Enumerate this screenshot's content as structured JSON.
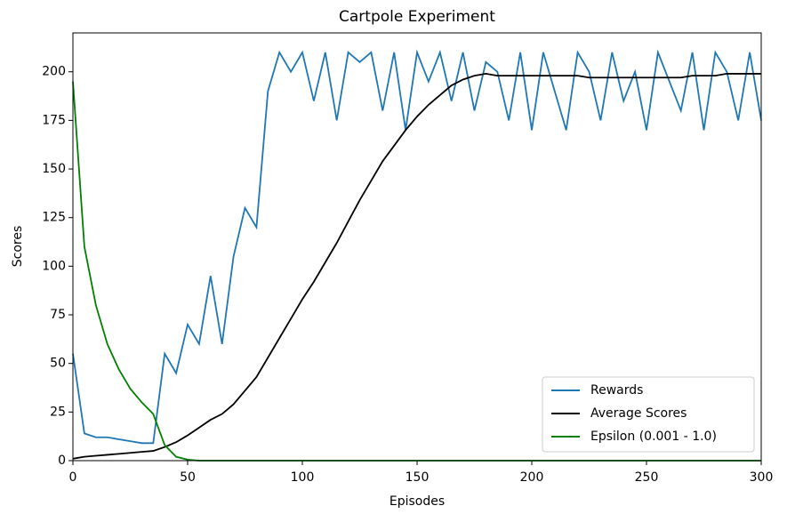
{
  "chart_data": {
    "type": "line",
    "title": "Cartpole Experiment",
    "x_label": "Episodes",
    "y_label": "Scores",
    "x": [
      0,
      5,
      10,
      15,
      20,
      25,
      30,
      35,
      40,
      45,
      50,
      55,
      60,
      65,
      70,
      75,
      80,
      85,
      90,
      95,
      100,
      105,
      110,
      115,
      120,
      125,
      130,
      135,
      140,
      145,
      150,
      155,
      160,
      165,
      170,
      175,
      180,
      185,
      190,
      195,
      200,
      205,
      210,
      215,
      220,
      225,
      230,
      235,
      240,
      245,
      250,
      255,
      260,
      265,
      270,
      275,
      280,
      285,
      290,
      295,
      300
    ],
    "series": [
      {
        "name": "Rewards",
        "color": "#1f77b4",
        "values": [
          55,
          14,
          12,
          12,
          11,
          10,
          9,
          9,
          55,
          45,
          70,
          60,
          95,
          60,
          105,
          130,
          120,
          190,
          210,
          200,
          210,
          185,
          210,
          175,
          210,
          205,
          210,
          180,
          210,
          170,
          210,
          195,
          210,
          185,
          210,
          180,
          205,
          200,
          175,
          210,
          170,
          210,
          190,
          170,
          210,
          200,
          175,
          210,
          185,
          200,
          170,
          210,
          195,
          180,
          210,
          170,
          210,
          200,
          175,
          210,
          175
        ]
      },
      {
        "name": "Average Scores",
        "color": "#000000",
        "values": [
          1,
          2,
          2.5,
          3,
          3.5,
          4,
          4.5,
          5,
          7,
          9.5,
          13,
          17,
          21,
          24,
          29,
          36,
          43,
          53,
          63,
          73,
          83,
          92,
          102,
          112,
          123,
          134,
          144,
          154,
          162,
          170,
          177,
          183,
          188,
          193,
          196,
          198,
          199,
          198,
          198,
          198,
          198,
          198,
          198,
          198,
          198,
          197,
          197,
          197,
          197,
          197,
          197,
          197,
          197,
          197,
          198,
          198,
          198,
          199,
          199,
          199,
          199
        ]
      },
      {
        "name": "Epsilon (0.001 - 1.0)",
        "color": "#008000",
        "values": [
          195,
          110,
          80,
          60,
          47,
          37,
          30,
          24,
          8,
          2,
          0.5,
          0,
          0,
          0,
          0,
          0,
          0,
          0,
          0,
          0,
          0,
          0,
          0,
          0,
          0,
          0,
          0,
          0,
          0,
          0,
          0,
          0,
          0,
          0,
          0,
          0,
          0,
          0,
          0,
          0,
          0,
          0,
          0,
          0,
          0,
          0,
          0,
          0,
          0,
          0,
          0,
          0,
          0,
          0,
          0,
          0,
          0,
          0,
          0,
          0,
          0
        ]
      }
    ],
    "xlim": [
      0,
      300
    ],
    "ylim": [
      0,
      220
    ],
    "xticks": [
      0,
      50,
      100,
      150,
      200,
      250,
      300
    ],
    "yticks": [
      0,
      25,
      50,
      75,
      100,
      125,
      150,
      175,
      200
    ],
    "legend": "lower right"
  }
}
